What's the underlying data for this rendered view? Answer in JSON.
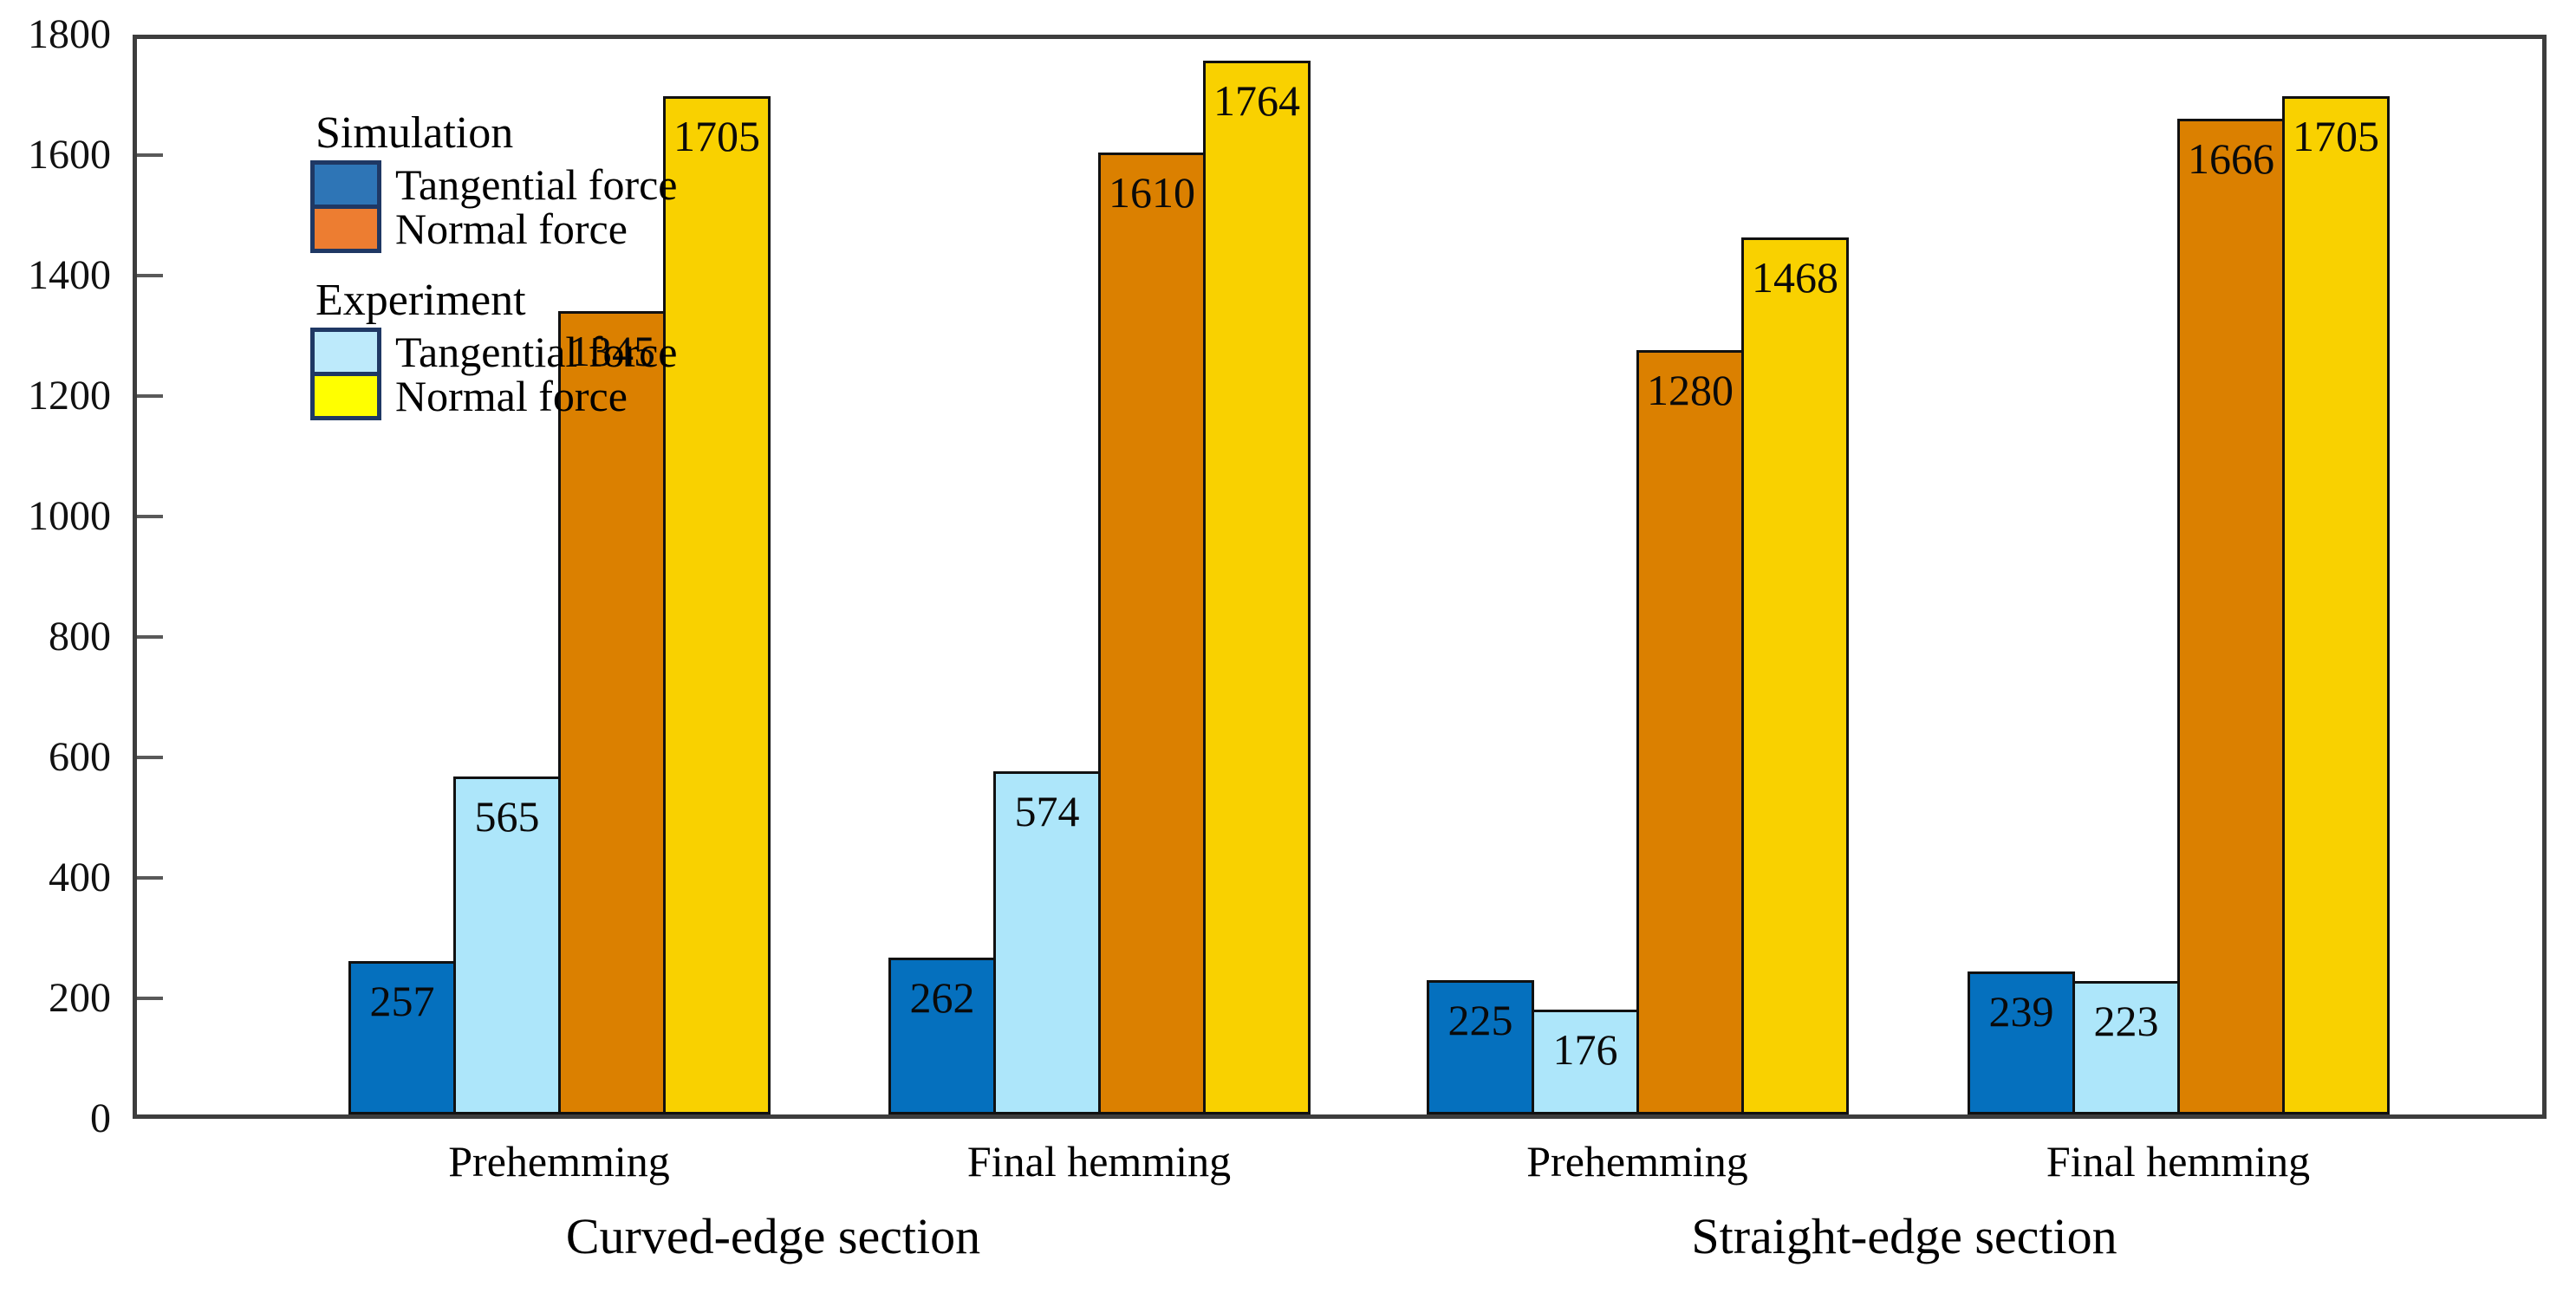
{
  "chart_data": {
    "type": "bar",
    "title": "",
    "xlabel": "",
    "ylabel": "",
    "ylim": [
      0,
      1800
    ],
    "ytick_interval": 200,
    "yticks": [
      0,
      200,
      400,
      600,
      800,
      1000,
      1200,
      1400,
      1600,
      1800
    ],
    "grid": false,
    "legend_position": "upper-left-inside",
    "sections": [
      {
        "label": "Curved-edge section",
        "categories": [
          "Prehemming",
          "Final hemming"
        ]
      },
      {
        "label": "Straight-edge section",
        "categories": [
          "Prehemming",
          "Final hemming"
        ]
      }
    ],
    "categories": [
      "Prehemming",
      "Final hemming",
      "Prehemming",
      "Final hemming"
    ],
    "series": [
      {
        "name": "Simulation Tangential force",
        "legend_group": "Simulation",
        "legend_label": "Tangential force",
        "bar_color": "#0570BE",
        "values": [
          257,
          262,
          225,
          239
        ]
      },
      {
        "name": "Experiment Tangential force",
        "legend_group": "Experiment",
        "legend_label": "Tangential force",
        "bar_color": "#ADE6FA",
        "values": [
          565,
          574,
          176,
          223
        ]
      },
      {
        "name": "Simulation Normal force",
        "legend_group": "Simulation",
        "legend_label": "Normal force",
        "bar_color": "#DB8000",
        "values": [
          1345,
          1610,
          1280,
          1666
        ]
      },
      {
        "name": "Experiment Normal force",
        "legend_group": "Experiment",
        "legend_label": "Normal force",
        "bar_color": "#F9D100",
        "values": [
          1705,
          1764,
          1468,
          1705
        ]
      }
    ],
    "bar_value_labels": [
      [
        257,
        565,
        1345,
        1705
      ],
      [
        262,
        574,
        1610,
        1764
      ],
      [
        225,
        176,
        1280,
        1468
      ],
      [
        239,
        223,
        1666,
        1705
      ]
    ],
    "legend": {
      "swatch_border_color": "#1F3864",
      "groups": [
        {
          "heading": "Simulation",
          "items": [
            {
              "label": "Tangential force",
              "color": "#2E75B6"
            },
            {
              "label": "Normal force",
              "color": "#ED7D31"
            }
          ]
        },
        {
          "heading": "Experiment",
          "items": [
            {
              "label": "Tangential force",
              "color": "#BDEAFB"
            },
            {
              "label": "Normal force",
              "color": "#FFFF00"
            }
          ]
        }
      ]
    }
  }
}
